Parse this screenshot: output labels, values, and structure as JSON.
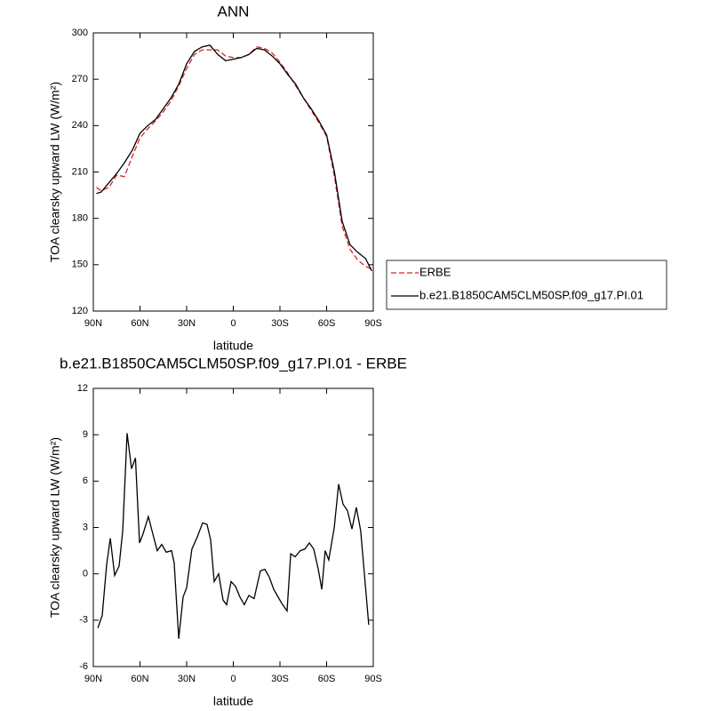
{
  "chart_data": [
    {
      "type": "line",
      "title": "ANN",
      "xlabel": "latitude",
      "ylabel": "TOA clearsky upward LW (W/m²)",
      "x": [
        88,
        85,
        80,
        75,
        70,
        65,
        60,
        55,
        50,
        45,
        40,
        35,
        30,
        25,
        20,
        15,
        10,
        5,
        0,
        -5,
        -10,
        -15,
        -20,
        -25,
        -30,
        -35,
        -40,
        -45,
        -50,
        -55,
        -60,
        -65,
        -70,
        -75,
        -80,
        -85,
        -89
      ],
      "series": [
        {
          "name": "ERBE",
          "color": "#e02020",
          "dashed": true,
          "values": [
            200,
            198,
            200,
            208,
            207,
            220,
            232,
            238,
            243,
            249,
            256,
            266,
            277,
            286,
            289,
            289,
            289,
            285,
            284,
            284,
            286,
            291,
            290,
            287,
            281,
            274,
            266,
            258,
            250,
            242,
            233,
            207,
            175,
            160,
            153,
            149,
            147
          ]
        },
        {
          "name": "b.e21.B1850CAM5CLM50SP.f09_g17.PI.01",
          "color": "#000000",
          "dashed": false,
          "values": [
            196,
            197,
            203,
            209,
            216,
            224,
            235,
            240,
            244,
            251,
            258,
            267,
            280,
            288,
            291,
            292,
            286,
            282,
            283,
            284,
            286,
            290,
            289,
            285,
            280,
            273,
            267,
            258,
            251,
            243,
            234,
            210,
            178,
            163,
            158,
            154,
            146
          ]
        }
      ],
      "xlim": [
        90,
        -90
      ],
      "xticks": [
        {
          "value": 90,
          "label": "90N"
        },
        {
          "value": 60,
          "label": "60N"
        },
        {
          "value": 30,
          "label": "30N"
        },
        0,
        {
          "value": -30,
          "label": "30S"
        },
        {
          "value": -60,
          "label": "60S"
        },
        {
          "value": -90,
          "label": "90S"
        }
      ],
      "ylim": [
        120,
        300
      ],
      "yticks": [
        120,
        150,
        180,
        210,
        240,
        270,
        300
      ],
      "legend": "right"
    },
    {
      "type": "line",
      "title": "b.e21.B1850CAM5CLM50SP.f09_g17.PI.01 - ERBE",
      "xlabel": "latitude",
      "ylabel": "TOA clearsky upward LW (W/m²)",
      "x": [
        87.1,
        84.3,
        81.4,
        79.1,
        76.3,
        73.4,
        71.1,
        68.3,
        65.4,
        62.9,
        60.3,
        58,
        54.6,
        52.3,
        48.9,
        46,
        43.1,
        39.7,
        38,
        35.1,
        32.3,
        30,
        26.6,
        23.1,
        19.7,
        16.9,
        14.6,
        12.3,
        9.4,
        6.6,
        4.3,
        1.4,
        -1.4,
        -4.3,
        -7.1,
        -10,
        -13.4,
        -17.4,
        -20.3,
        -23.1,
        -26,
        -29.4,
        -31.7,
        -34.6,
        -36.9,
        -39.7,
        -43.1,
        -46,
        -48.9,
        -51.7,
        -54.6,
        -56.9,
        -59.1,
        -61.4,
        -64.9,
        -67.7,
        -70.6,
        -73.4,
        -76.3,
        -79.1,
        -81.9,
        -84.3,
        -87.1
      ],
      "values": [
        -3.5,
        -2.7,
        0.6,
        2.3,
        -0.1,
        0.5,
        2.8,
        9.1,
        6.8,
        7.5,
        2.0,
        2.6,
        3.7,
        2.8,
        1.5,
        1.9,
        1.4,
        1.5,
        0.7,
        -4.2,
        -1.5,
        -0.9,
        1.6,
        2.4,
        3.3,
        3.2,
        2.2,
        -0.5,
        0.0,
        -1.7,
        -2.0,
        -0.5,
        -0.8,
        -1.5,
        -2.0,
        -1.4,
        -1.6,
        0.2,
        0.3,
        -0.2,
        -1.0,
        -1.6,
        -2.0,
        -2.4,
        1.3,
        1.1,
        1.5,
        1.6,
        2.0,
        1.6,
        0.3,
        -1.0,
        1.5,
        0.9,
        3.0,
        5.8,
        4.5,
        4.1,
        2.9,
        4.3,
        2.8,
        0.0,
        -3.3
      ],
      "color": "#000000",
      "xlim": [
        90,
        -90
      ],
      "xticks": [
        {
          "value": 90,
          "label": "90N"
        },
        {
          "value": 60,
          "label": "60N"
        },
        {
          "value": 30,
          "label": "30N"
        },
        0,
        {
          "value": -30,
          "label": "30S"
        },
        {
          "value": -60,
          "label": "60S"
        },
        {
          "value": -90,
          "label": "90S"
        }
      ],
      "ylim": [
        -6,
        12
      ],
      "yticks": [
        -6,
        -3,
        0,
        3,
        6,
        9,
        12
      ]
    }
  ]
}
